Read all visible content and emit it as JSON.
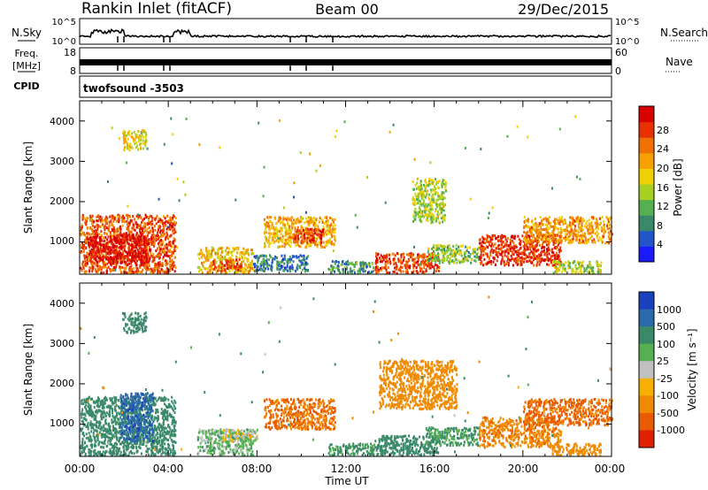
{
  "header": {
    "station": "Rankin Inlet (fitACF)",
    "beam": "Beam 00",
    "date": "29/Dec/2015"
  },
  "summary": {
    "nsky_label": "N.Sky",
    "nsky_ticks": [
      "10^5",
      "10^0"
    ],
    "nsearch_label": "N.Search",
    "freq_label": "Freq.",
    "freq_unit": "[MHz]",
    "freq_ticks": [
      "18",
      "8"
    ],
    "nave_label": "Nave",
    "nave_ticks": [
      "60",
      "0"
    ],
    "cpid_label": "CPID",
    "cpid_value": "twofsound -3503"
  },
  "axes": {
    "ylabel": "Slant Range [km]",
    "xlabel": "Time UT",
    "y_ticks": [
      "1000",
      "2000",
      "3000",
      "4000"
    ],
    "x_ticks": [
      "00:00",
      "04:00",
      "08:00",
      "12:00",
      "16:00",
      "20:00",
      "00:00"
    ]
  },
  "colorbars": {
    "power": {
      "label": "Power [dB]",
      "ticks": [
        "4",
        "8",
        "12",
        "16",
        "20",
        "24",
        "28"
      ],
      "colors": [
        "#1a1aff",
        "#2255cc",
        "#3a8a6a",
        "#55b050",
        "#a8d020",
        "#f0d000",
        "#f7a000",
        "#f07000",
        "#e83000",
        "#d80000"
      ]
    },
    "velocity": {
      "label": "Velocity [m s⁻¹]",
      "ticks": [
        "1000",
        "500",
        "100",
        "25",
        "-25",
        "-100",
        "-500",
        "-1000"
      ],
      "colors": [
        "#1a3fbf",
        "#2a6aaa",
        "#3a8a6a",
        "#55b050",
        "#c0c0c0",
        "#f7b000",
        "#f08a00",
        "#ea5a00",
        "#e02000"
      ]
    }
  },
  "chart_data": [
    {
      "type": "heatmap",
      "quantity": "Power",
      "x_unit": "hours UT",
      "y_unit": "km",
      "xlim": [
        0,
        24
      ],
      "ylim": [
        200,
        4500
      ],
      "clim": [
        0,
        30
      ],
      "regions": [
        {
          "t": [
            0.0,
            4.3
          ],
          "r": [
            250,
            1700
          ],
          "level": 24
        },
        {
          "t": [
            0.3,
            3.2
          ],
          "r": [
            500,
            1200
          ],
          "level": 29
        },
        {
          "t": [
            5.3,
            7.8
          ],
          "r": [
            250,
            900
          ],
          "level": 18
        },
        {
          "t": [
            6.0,
            7.3
          ],
          "r": [
            300,
            600
          ],
          "level": 25
        },
        {
          "t": [
            7.8,
            10.3
          ],
          "r": [
            300,
            700
          ],
          "level": 7
        },
        {
          "t": [
            8.3,
            11.5
          ],
          "r": [
            900,
            1650
          ],
          "level": 19
        },
        {
          "t": [
            9.6,
            11.0
          ],
          "r": [
            1000,
            1350
          ],
          "level": 26
        },
        {
          "t": [
            11.2,
            13.3
          ],
          "r": [
            250,
            550
          ],
          "level": 9
        },
        {
          "t": [
            13.3,
            16.2
          ],
          "r": [
            250,
            750
          ],
          "level": 25
        },
        {
          "t": [
            15.6,
            18.0
          ],
          "r": [
            500,
            950
          ],
          "level": 12
        },
        {
          "t": [
            15.0,
            16.5
          ],
          "r": [
            1500,
            2600
          ],
          "level": 14
        },
        {
          "t": [
            18.0,
            21.7
          ],
          "r": [
            450,
            1200
          ],
          "level": 26
        },
        {
          "t": [
            20.0,
            24.0
          ],
          "r": [
            1000,
            1650
          ],
          "level": 20
        },
        {
          "t": [
            21.3,
            23.5
          ],
          "r": [
            250,
            550
          ],
          "level": 14
        },
        {
          "t": [
            1.9,
            3.0
          ],
          "r": [
            3300,
            3800
          ],
          "level": 16
        }
      ]
    },
    {
      "type": "heatmap",
      "quantity": "Velocity",
      "x_unit": "hours UT",
      "y_unit": "km",
      "xlim": [
        0,
        24
      ],
      "ylim": [
        200,
        4500
      ],
      "clim": [
        -1000,
        1000
      ],
      "regions": [
        {
          "t": [
            0.0,
            4.3
          ],
          "r": [
            250,
            1700
          ],
          "vel": 300
        },
        {
          "t": [
            1.8,
            3.3
          ],
          "r": [
            600,
            1800
          ],
          "vel": 800
        },
        {
          "t": [
            5.3,
            7.8
          ],
          "r": [
            250,
            900
          ],
          "vel": 60
        },
        {
          "t": [
            6.3,
            8.0
          ],
          "r": [
            600,
            900
          ],
          "vel": 0
        },
        {
          "t": [
            8.3,
            11.5
          ],
          "r": [
            900,
            1650
          ],
          "vel": -500
        },
        {
          "t": [
            11.2,
            13.3
          ],
          "r": [
            250,
            550
          ],
          "vel": 120
        },
        {
          "t": [
            13.3,
            16.2
          ],
          "r": [
            250,
            750
          ],
          "vel": 200
        },
        {
          "t": [
            13.5,
            17.0
          ],
          "r": [
            1400,
            2600
          ],
          "vel": -350
        },
        {
          "t": [
            15.6,
            18.0
          ],
          "r": [
            500,
            950
          ],
          "vel": 100
        },
        {
          "t": [
            18.0,
            21.7
          ],
          "r": [
            450,
            1200
          ],
          "vel": -400
        },
        {
          "t": [
            20.0,
            24.0
          ],
          "r": [
            1000,
            1650
          ],
          "vel": -600
        },
        {
          "t": [
            21.3,
            23.5
          ],
          "r": [
            250,
            550
          ],
          "vel": -250
        },
        {
          "t": [
            1.9,
            3.0
          ],
          "r": [
            3300,
            3800
          ],
          "vel": 200
        }
      ]
    }
  ]
}
